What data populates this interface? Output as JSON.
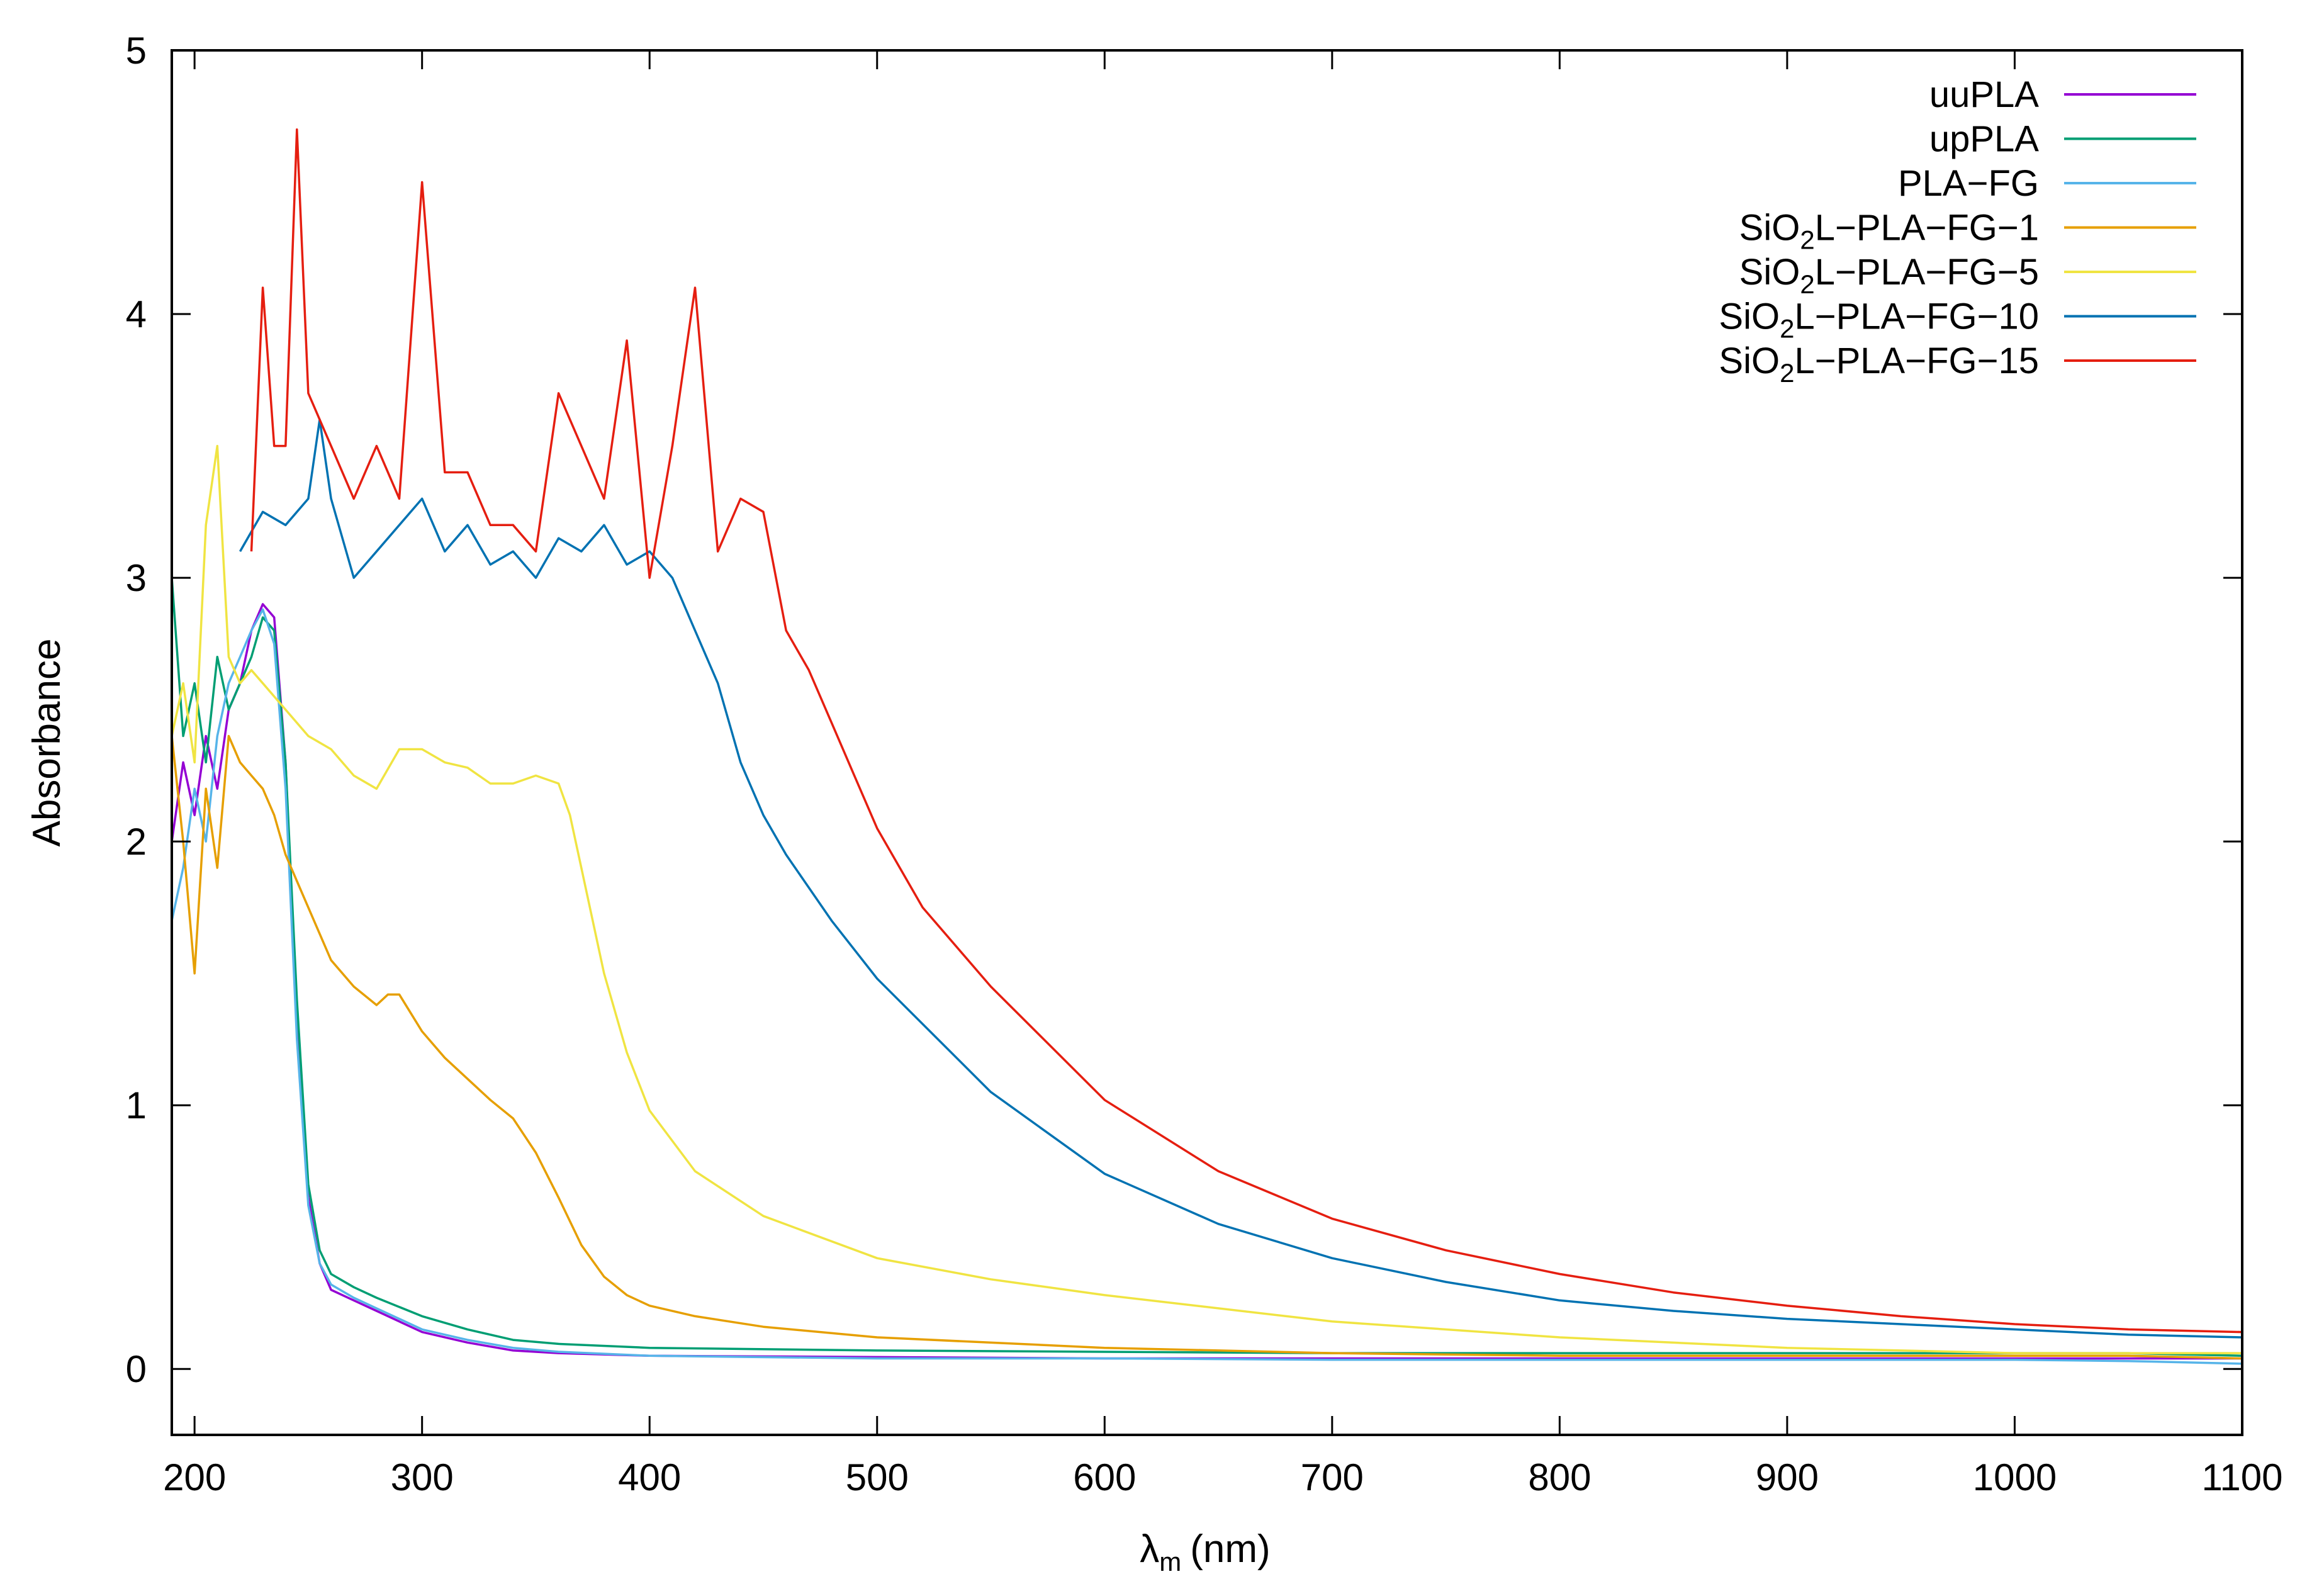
{
  "chart_data": {
    "type": "line",
    "title": "",
    "xlabel": "λ",
    "xlabel_sub": "m",
    "xlabel_unit": "(nm)",
    "ylabel": "Absorbance",
    "xlim": [
      190,
      1100
    ],
    "ylim": [
      -0.25,
      5
    ],
    "x_ticks": [
      200,
      300,
      400,
      500,
      600,
      700,
      800,
      900,
      1000,
      1100
    ],
    "y_ticks": [
      0,
      1,
      2,
      3,
      4,
      5
    ],
    "grid": false,
    "legend_position": "top-right",
    "series": [
      {
        "name": "uuPLA",
        "label_parts": [
          "uuPLA"
        ],
        "color": "#9400d3",
        "x": [
          190,
          195,
          200,
          205,
          210,
          215,
          220,
          225,
          230,
          235,
          240,
          245,
          250,
          255,
          260,
          270,
          280,
          300,
          320,
          340,
          360,
          400,
          500,
          600,
          700,
          800,
          900,
          1000,
          1050,
          1100
        ],
        "y": [
          2.0,
          2.3,
          2.1,
          2.4,
          2.2,
          2.5,
          2.6,
          2.8,
          2.9,
          2.85,
          2.3,
          1.3,
          0.65,
          0.4,
          0.3,
          0.26,
          0.22,
          0.14,
          0.1,
          0.07,
          0.06,
          0.05,
          0.045,
          0.04,
          0.04,
          0.04,
          0.04,
          0.04,
          0.04,
          0.04
        ]
      },
      {
        "name": "upPLA",
        "label_parts": [
          "upPLA"
        ],
        "color": "#009e73",
        "x": [
          190,
          195,
          200,
          205,
          210,
          215,
          220,
          225,
          230,
          235,
          240,
          245,
          250,
          255,
          260,
          270,
          280,
          300,
          320,
          340,
          360,
          400,
          500,
          600,
          700,
          800,
          900,
          1000,
          1050,
          1100
        ],
        "y": [
          3.0,
          2.4,
          2.6,
          2.3,
          2.7,
          2.5,
          2.6,
          2.7,
          2.85,
          2.8,
          2.3,
          1.4,
          0.7,
          0.45,
          0.36,
          0.31,
          0.27,
          0.2,
          0.15,
          0.11,
          0.095,
          0.08,
          0.07,
          0.065,
          0.06,
          0.06,
          0.06,
          0.06,
          0.06,
          0.05
        ]
      },
      {
        "name": "PLA−FG",
        "label_parts": [
          "PLA−FG"
        ],
        "color": "#56b4e9",
        "x": [
          190,
          195,
          200,
          205,
          210,
          215,
          220,
          225,
          230,
          235,
          240,
          245,
          250,
          255,
          260,
          270,
          280,
          300,
          320,
          340,
          360,
          400,
          500,
          600,
          700,
          800,
          900,
          1000,
          1050,
          1100
        ],
        "y": [
          1.7,
          1.9,
          2.2,
          2.0,
          2.4,
          2.6,
          2.7,
          2.8,
          2.88,
          2.75,
          2.2,
          1.25,
          0.62,
          0.4,
          0.32,
          0.27,
          0.23,
          0.15,
          0.11,
          0.08,
          0.065,
          0.05,
          0.04,
          0.04,
          0.035,
          0.035,
          0.035,
          0.035,
          0.03,
          0.02
        ]
      },
      {
        "name": "SiO2L−PLA−FG−1",
        "label_parts": [
          "SiO",
          "2",
          "L−PLA−FG−1"
        ],
        "color": "#e69f00",
        "x": [
          190,
          195,
          200,
          205,
          210,
          215,
          220,
          225,
          230,
          235,
          240,
          245,
          250,
          255,
          260,
          270,
          280,
          285,
          290,
          300,
          310,
          320,
          330,
          340,
          350,
          360,
          370,
          380,
          390,
          400,
          420,
          450,
          500,
          600,
          700,
          800,
          900,
          1000,
          1050,
          1100
        ],
        "y": [
          2.4,
          2.0,
          1.5,
          2.2,
          1.9,
          2.4,
          2.3,
          2.25,
          2.2,
          2.1,
          1.95,
          1.85,
          1.75,
          1.65,
          1.55,
          1.45,
          1.38,
          1.42,
          1.42,
          1.28,
          1.18,
          1.1,
          1.02,
          0.95,
          0.82,
          0.65,
          0.47,
          0.35,
          0.28,
          0.24,
          0.2,
          0.16,
          0.12,
          0.08,
          0.06,
          0.05,
          0.05,
          0.05,
          0.05,
          0.04
        ]
      },
      {
        "name": "SiO2L−PLA−FG−5",
        "label_parts": [
          "SiO",
          "2",
          "L−PLA−FG−5"
        ],
        "color": "#f0e442",
        "x": [
          190,
          195,
          200,
          205,
          210,
          215,
          220,
          225,
          230,
          240,
          250,
          260,
          270,
          280,
          290,
          300,
          310,
          320,
          330,
          340,
          350,
          360,
          365,
          370,
          380,
          390,
          400,
          420,
          450,
          500,
          550,
          600,
          700,
          800,
          900,
          1000,
          1050,
          1100
        ],
        "y": [
          2.4,
          2.6,
          2.3,
          3.2,
          3.5,
          2.7,
          2.6,
          2.65,
          2.6,
          2.5,
          2.4,
          2.35,
          2.25,
          2.2,
          2.35,
          2.35,
          2.3,
          2.28,
          2.22,
          2.22,
          2.25,
          2.22,
          2.1,
          1.9,
          1.5,
          1.2,
          0.98,
          0.75,
          0.58,
          0.42,
          0.34,
          0.28,
          0.18,
          0.12,
          0.08,
          0.06,
          0.06,
          0.06
        ]
      },
      {
        "name": "SiO2L−PLA−FG−10",
        "label_parts": [
          "SiO",
          "2",
          "L−PLA−FG−10"
        ],
        "color": "#0072b2",
        "x": [
          220,
          230,
          240,
          250,
          255,
          260,
          270,
          280,
          290,
          300,
          310,
          320,
          330,
          340,
          350,
          360,
          370,
          380,
          390,
          400,
          410,
          420,
          430,
          440,
          450,
          460,
          480,
          500,
          550,
          600,
          650,
          700,
          750,
          800,
          850,
          900,
          950,
          1000,
          1050,
          1100
        ],
        "y": [
          3.1,
          3.25,
          3.2,
          3.3,
          3.6,
          3.3,
          3.0,
          3.1,
          3.2,
          3.3,
          3.1,
          3.2,
          3.05,
          3.1,
          3.0,
          3.15,
          3.1,
          3.2,
          3.05,
          3.1,
          3.0,
          2.8,
          2.6,
          2.3,
          2.1,
          1.95,
          1.7,
          1.48,
          1.05,
          0.74,
          0.55,
          0.42,
          0.33,
          0.26,
          0.22,
          0.19,
          0.17,
          0.15,
          0.13,
          0.12
        ]
      },
      {
        "name": "SiO2L−PLA−FG−15",
        "label_parts": [
          "SiO",
          "2",
          "L−PLA−FG−15"
        ],
        "color": "#e51e10",
        "x": [
          225,
          230,
          235,
          240,
          245,
          250,
          255,
          260,
          270,
          280,
          290,
          300,
          310,
          320,
          330,
          340,
          350,
          360,
          370,
          380,
          390,
          400,
          410,
          420,
          430,
          440,
          450,
          460,
          470,
          480,
          490,
          500,
          520,
          550,
          600,
          650,
          700,
          750,
          800,
          850,
          900,
          950,
          1000,
          1050,
          1100
        ],
        "y": [
          3.1,
          4.1,
          3.5,
          3.5,
          4.7,
          3.7,
          3.6,
          3.5,
          3.3,
          3.5,
          3.3,
          4.5,
          3.4,
          3.4,
          3.2,
          3.2,
          3.1,
          3.7,
          3.5,
          3.3,
          3.9,
          3.0,
          3.5,
          4.1,
          3.1,
          3.3,
          3.25,
          2.8,
          2.65,
          2.45,
          2.25,
          2.05,
          1.75,
          1.45,
          1.02,
          0.75,
          0.57,
          0.45,
          0.36,
          0.29,
          0.24,
          0.2,
          0.17,
          0.15,
          0.14
        ]
      }
    ]
  }
}
